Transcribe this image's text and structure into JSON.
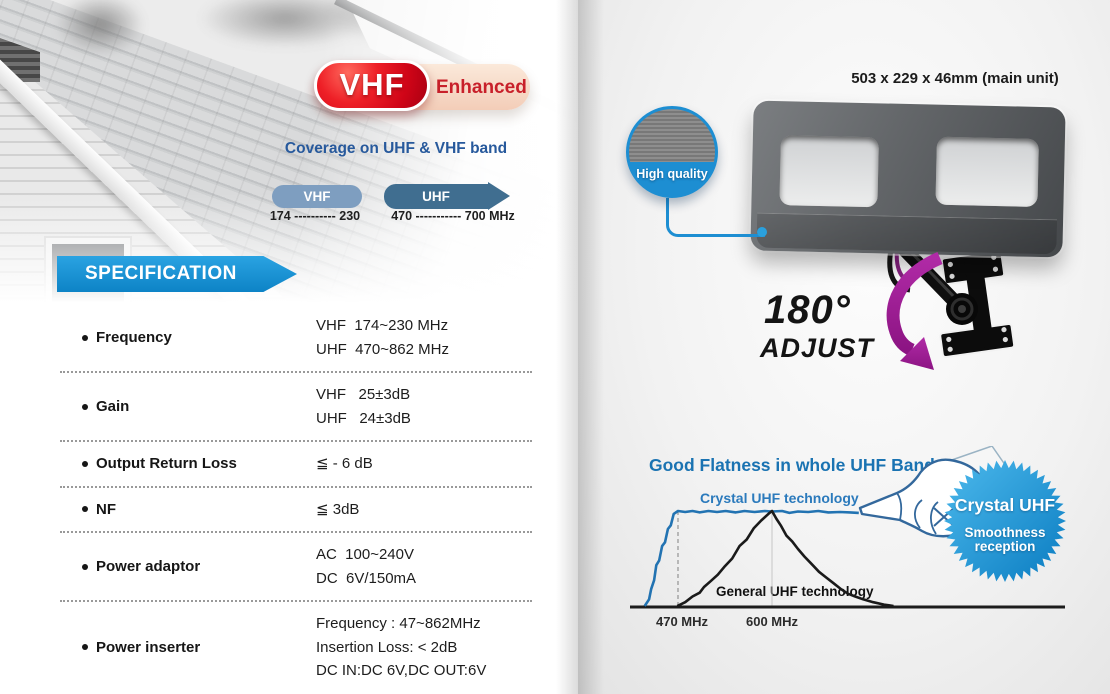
{
  "left_page": {
    "badge": {
      "vhf": "VHF",
      "enhanced": "Enhanced"
    },
    "coverage_title": "Coverage on UHF & VHF band",
    "bands": {
      "vhf_label": "VHF",
      "uhf_label": "UHF",
      "vhf_range": "174 ---------- 230",
      "uhf_range": "470 ----------- 700 MHz"
    },
    "spec_header": "SPECIFICATION",
    "spec_rows": [
      {
        "label": "Frequency",
        "values": [
          "VHF  174~230 MHz",
          "UHF  470~862 MHz"
        ]
      },
      {
        "label": "Gain",
        "values": [
          "VHF   25±3dB",
          "UHF   24±3dB"
        ]
      },
      {
        "label": "Output Return Loss",
        "values": [
          "≦ - 6 dB"
        ]
      },
      {
        "label": "NF",
        "values": [
          "≦ 3dB"
        ]
      },
      {
        "label": "Power adaptor",
        "values": [
          "AC  100~240V",
          "DC  6V/150mA"
        ]
      },
      {
        "label": "Power inserter",
        "values": [
          "Frequency : 47~862MHz",
          "Insertion Loss: < 2dB",
          "DC IN:DC 6V,DC OUT:6V"
        ]
      }
    ]
  },
  "right_page": {
    "dimensions_label": "503 x 229 x 46mm (main unit)",
    "high_quality_label": "High quality",
    "adjust": {
      "degrees": "180°",
      "word": "ADJUST"
    },
    "badge": {
      "title": "Crystal UHF",
      "sub1": "Smoothness",
      "sub2": "reception"
    }
  },
  "chart_data": {
    "type": "line",
    "title": "Good Flatness in whole UHF Band",
    "xlabel": "",
    "ylabel": "",
    "grid": false,
    "legend_position": "inline-labels",
    "ticks": [
      {
        "mhz": 470,
        "label": "470 MHz"
      },
      {
        "mhz": 600,
        "label": "600 MHz"
      }
    ],
    "series": [
      {
        "name": "Crystal UHF technology",
        "color": "#2273b2",
        "points": [
          [
            424,
            0
          ],
          [
            430,
            0.07
          ],
          [
            433,
            0.18
          ],
          [
            437,
            0.27
          ],
          [
            440,
            0.43
          ],
          [
            444,
            0.48
          ],
          [
            448,
            0.63
          ],
          [
            452,
            0.67
          ],
          [
            456,
            0.81
          ],
          [
            460,
            0.85
          ],
          [
            464,
            0.97
          ],
          [
            470,
            1
          ],
          [
            480,
            0.99
          ],
          [
            490,
            1
          ],
          [
            500,
            0.985
          ],
          [
            512,
            1
          ],
          [
            524,
            0.99
          ],
          [
            536,
            1
          ],
          [
            550,
            0.985
          ],
          [
            562,
            1
          ],
          [
            576,
            0.99
          ],
          [
            590,
            1
          ],
          [
            600,
            0.995
          ],
          [
            614,
            1
          ],
          [
            624,
            0.98
          ],
          [
            636,
            0.995
          ],
          [
            650,
            0.99
          ],
          [
            664,
            1
          ],
          [
            678,
            0.985
          ],
          [
            694,
            0.99
          ],
          [
            708,
            0.985
          ],
          [
            720,
            0.98
          ]
        ]
      },
      {
        "name": "General UHF technology",
        "color": "#1a1a1a",
        "points": [
          [
            469,
            0
          ],
          [
            480,
            0.04
          ],
          [
            490,
            0.1
          ],
          [
            500,
            0.14
          ],
          [
            506,
            0.2
          ],
          [
            515,
            0.26
          ],
          [
            525,
            0.33
          ],
          [
            535,
            0.42
          ],
          [
            545,
            0.5
          ],
          [
            555,
            0.63
          ],
          [
            565,
            0.7
          ],
          [
            575,
            0.82
          ],
          [
            585,
            0.9
          ],
          [
            595,
            0.97
          ],
          [
            600,
            1
          ],
          [
            606,
            0.92
          ],
          [
            612,
            0.85
          ],
          [
            620,
            0.74
          ],
          [
            628,
            0.68
          ],
          [
            636,
            0.6
          ],
          [
            645,
            0.52
          ],
          [
            655,
            0.44
          ],
          [
            665,
            0.36
          ],
          [
            675,
            0.3
          ],
          [
            685,
            0.24
          ],
          [
            695,
            0.18
          ],
          [
            705,
            0.13
          ],
          [
            715,
            0.1
          ],
          [
            726,
            0.07
          ],
          [
            740,
            0.04
          ],
          [
            755,
            0.015
          ],
          [
            768,
            0
          ]
        ]
      }
    ]
  },
  "colors": {
    "accent_blue": "#1a9ad9",
    "brand_red": "#d40418",
    "band_vhf": "#7e9ec0",
    "band_uhf": "#406e90",
    "rotate_arrow_purple": "#9a1d92",
    "starburst_blue_light": "#4cb9ec",
    "starburst_blue_dark": "#0a7cc1"
  }
}
